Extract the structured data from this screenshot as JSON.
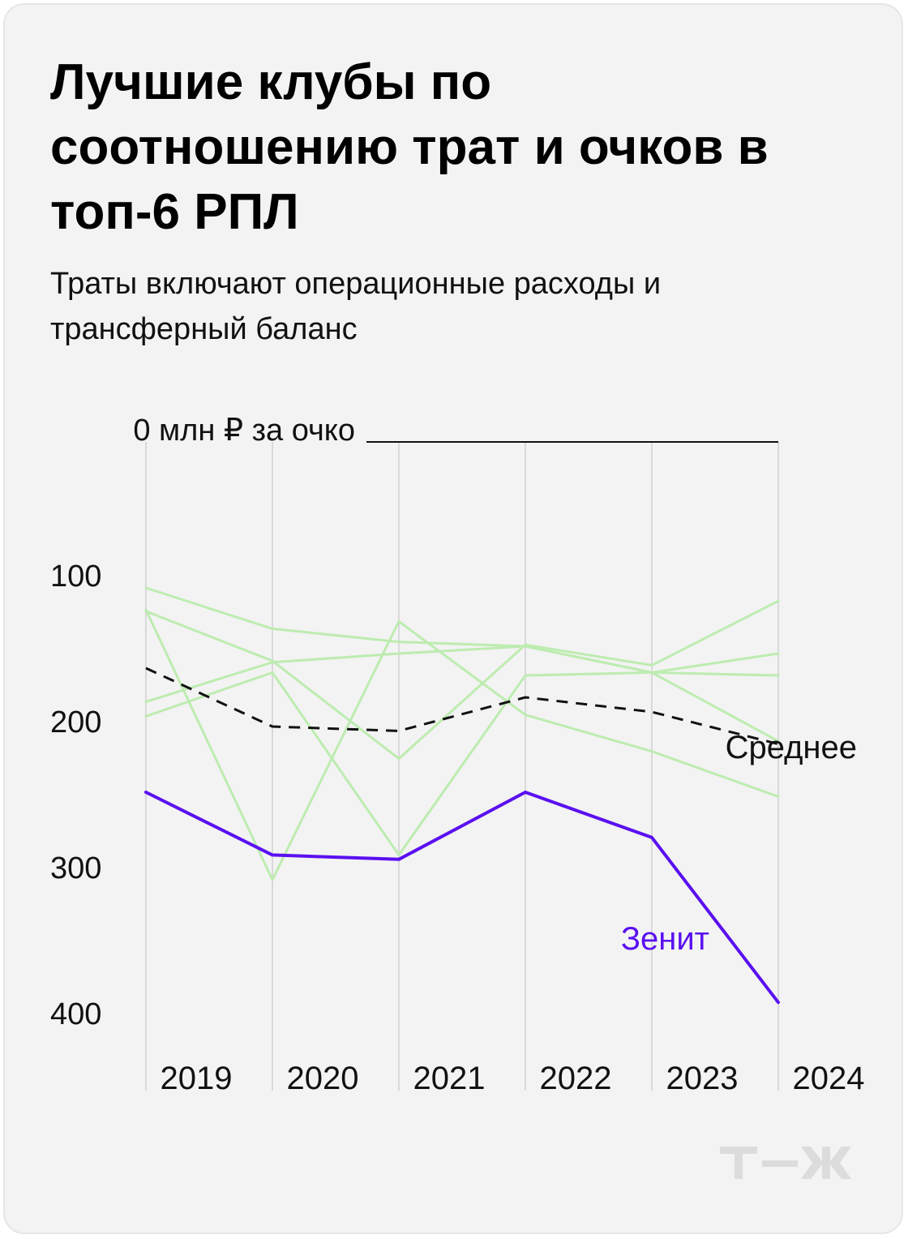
{
  "title": "Лучшие клубы по соотношению трат и очков в топ-6 РПЛ",
  "subtitle": "Траты включают операционные расходы и трансферный баланс",
  "colors": {
    "background": "#f3f3f3",
    "other_clubs": "#bdecb0",
    "average": "#111111",
    "zenit": "#5a10f0",
    "logo": "#dcdcdc"
  },
  "logo_icon": "tzh-logo",
  "chart_data": {
    "type": "line",
    "x": [
      2019,
      2020,
      2021,
      2022,
      2023,
      2024
    ],
    "x_tick_labels": [
      "2019",
      "2020",
      "2021",
      "2022",
      "2023",
      "2024"
    ],
    "ylim": [
      0,
      400
    ],
    "y_inverted": true,
    "y_ticks": [
      0,
      100,
      200,
      300,
      400
    ],
    "y_tick_labels": [
      "0 млн ₽ за очко",
      "100",
      "200",
      "300",
      "400"
    ],
    "grid": "vertical lines at each year",
    "annotations": [
      {
        "text": "Среднее",
        "series": "average"
      },
      {
        "text": "Зенит",
        "series": "zenit"
      }
    ],
    "series": [
      {
        "id": "club-a",
        "style": "other",
        "values": [
          100,
          128,
          137,
          140,
          158,
          160
        ]
      },
      {
        "id": "club-b",
        "style": "other",
        "values": [
          116,
          150,
          217,
          139,
          153,
          109
        ]
      },
      {
        "id": "club-c",
        "style": "other",
        "values": [
          115,
          300,
          123,
          187,
          212,
          243
        ]
      },
      {
        "id": "club-d",
        "style": "other",
        "values": [
          178,
          151,
          145,
          140,
          158,
          145
        ]
      },
      {
        "id": "club-e",
        "style": "other",
        "values": [
          188,
          158,
          283,
          160,
          158,
          205
        ]
      },
      {
        "id": "average",
        "name": "Среднее",
        "style": "dashed",
        "values": [
          155,
          195,
          198,
          175,
          185,
          207
        ]
      },
      {
        "id": "zenit",
        "name": "Зенит",
        "style": "highlight",
        "values": [
          240,
          283,
          286,
          240,
          271,
          384
        ]
      }
    ]
  }
}
